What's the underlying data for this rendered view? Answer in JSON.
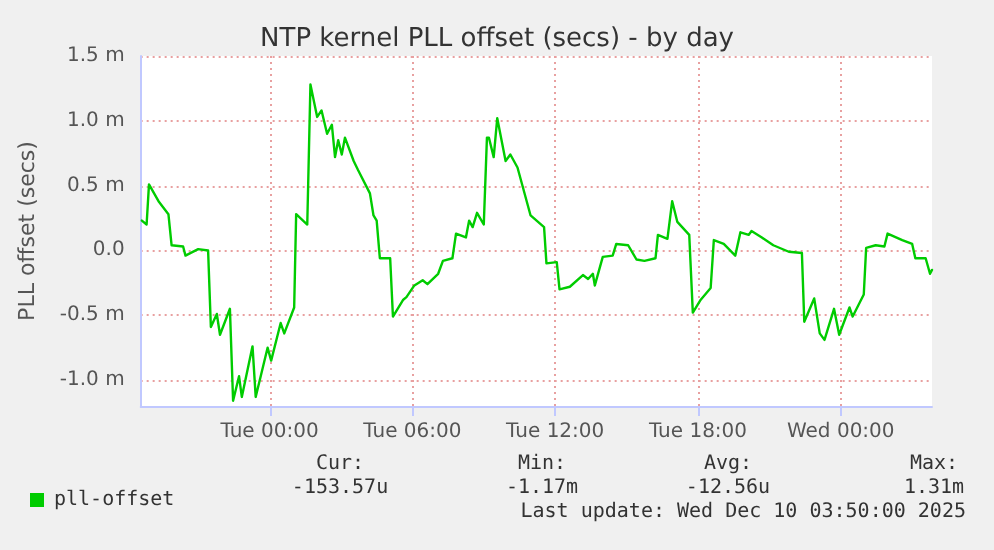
{
  "chart_data": {
    "type": "line",
    "title": "NTP kernel PLL offset (secs) - by day",
    "ylabel": "PLL offset (secs)",
    "series": [
      {
        "name": "pll-offset",
        "color": "#00cc00",
        "x": [
          "2025-12-08T18:38",
          "2025-12-08T18:50",
          "2025-12-08T18:56",
          "2025-12-08T19:20",
          "2025-12-08T19:45",
          "2025-12-08T19:53",
          "2025-12-08T20:22",
          "2025-12-08T20:28",
          "2025-12-08T21:00",
          "2025-12-08T21:25",
          "2025-12-08T21:32",
          "2025-12-08T21:47",
          "2025-12-08T21:55",
          "2025-12-08T22:20",
          "2025-12-08T22:28",
          "2025-12-08T22:43",
          "2025-12-08T22:50",
          "2025-12-08T23:17",
          "2025-12-08T23:25",
          "2025-12-08T23:55",
          "2025-12-09T00:04",
          "2025-12-09T00:28",
          "2025-12-09T00:37",
          "2025-12-09T01:02",
          "2025-12-09T01:07",
          "2025-12-09T01:35",
          "2025-12-09T01:43",
          "2025-12-09T02:00",
          "2025-12-09T02:11",
          "2025-12-09T02:25",
          "2025-12-09T02:37",
          "2025-12-09T02:45",
          "2025-12-09T02:53",
          "2025-12-09T03:02",
          "2025-12-09T03:10",
          "2025-12-09T03:32",
          "2025-12-09T03:43",
          "2025-12-09T04:13",
          "2025-12-09T04:22",
          "2025-12-09T04:30",
          "2025-12-09T04:38",
          "2025-12-09T05:04",
          "2025-12-09T05:11",
          "2025-12-09T05:37",
          "2025-12-09T05:45",
          "2025-12-09T06:05",
          "2025-12-09T06:26",
          "2025-12-09T06:38",
          "2025-12-09T07:05",
          "2025-12-09T07:17",
          "2025-12-09T07:41",
          "2025-12-09T07:50",
          "2025-12-09T08:15",
          "2025-12-09T08:23",
          "2025-12-09T08:32",
          "2025-12-09T08:43",
          "2025-12-09T09:00",
          "2025-12-09T09:08",
          "2025-12-09T09:13",
          "2025-12-09T09:25",
          "2025-12-09T09:34",
          "2025-12-09T09:55",
          "2025-12-09T10:07",
          "2025-12-09T10:25",
          "2025-12-09T10:58",
          "2025-12-09T11:32",
          "2025-12-09T11:38",
          "2025-12-09T12:04",
          "2025-12-09T12:11",
          "2025-12-09T12:37",
          "2025-12-09T13:10",
          "2025-12-09T13:23",
          "2025-12-09T13:35",
          "2025-12-09T13:40",
          "2025-12-09T14:00",
          "2025-12-09T14:25",
          "2025-12-09T14:34",
          "2025-12-09T15:04",
          "2025-12-09T15:25",
          "2025-12-09T15:45",
          "2025-12-09T16:13",
          "2025-12-09T16:19",
          "2025-12-09T16:43",
          "2025-12-09T16:55",
          "2025-12-09T17:08",
          "2025-12-09T17:38",
          "2025-12-09T17:47",
          "2025-12-09T18:07",
          "2025-12-09T18:32",
          "2025-12-09T18:40",
          "2025-12-09T19:05",
          "2025-12-09T19:34",
          "2025-12-09T19:47",
          "2025-12-09T20:08",
          "2025-12-09T20:15",
          "2025-12-09T20:41",
          "2025-12-09T21:10",
          "2025-12-09T21:49",
          "2025-12-09T22:22",
          "2025-12-09T22:28",
          "2025-12-09T22:53",
          "2025-12-09T23:07",
          "2025-12-09T23:19",
          "2025-12-09T23:43",
          "2025-12-09T23:56",
          "2025-12-10T00:22",
          "2025-12-10T00:30",
          "2025-12-10T00:58",
          "2025-12-10T01:04",
          "2025-12-10T01:28",
          "2025-12-10T01:50",
          "2025-12-10T01:58",
          "2025-12-10T02:35",
          "2025-12-10T03:00",
          "2025-12-10T03:08",
          "2025-12-10T03:34",
          "2025-12-10T03:45",
          "2025-12-10T03:50"
        ],
        "values": [
          0.23,
          0.2,
          0.51,
          0.38,
          0.28,
          0.04,
          0.03,
          -0.04,
          0.01,
          0.0,
          -0.59,
          -0.49,
          -0.65,
          -0.45,
          -1.16,
          -0.97,
          -1.13,
          -0.74,
          -1.13,
          -0.75,
          -0.85,
          -0.56,
          -0.64,
          -0.44,
          0.28,
          0.2,
          1.28,
          1.03,
          1.08,
          0.9,
          0.97,
          0.72,
          0.85,
          0.74,
          0.87,
          0.69,
          0.62,
          0.44,
          0.27,
          0.23,
          -0.06,
          -0.06,
          -0.51,
          -0.38,
          -0.36,
          -0.27,
          -0.23,
          -0.26,
          -0.18,
          -0.08,
          -0.06,
          0.13,
          0.1,
          0.23,
          0.18,
          0.29,
          0.2,
          0.87,
          0.87,
          0.72,
          1.02,
          0.69,
          0.74,
          0.64,
          0.27,
          0.18,
          -0.1,
          -0.09,
          -0.3,
          -0.28,
          -0.19,
          -0.22,
          -0.18,
          -0.27,
          -0.05,
          -0.04,
          0.05,
          0.04,
          -0.07,
          -0.08,
          -0.06,
          0.12,
          0.09,
          0.38,
          0.22,
          0.12,
          -0.48,
          -0.38,
          -0.29,
          0.08,
          0.05,
          -0.04,
          0.14,
          0.12,
          0.15,
          0.1,
          0.04,
          -0.01,
          -0.02,
          -0.55,
          -0.37,
          -0.64,
          -0.69,
          -0.45,
          -0.65,
          -0.44,
          -0.51,
          -0.34,
          0.02,
          0.04,
          0.03,
          0.13,
          0.08,
          0.05,
          -0.06,
          -0.06,
          -0.18,
          -0.15
        ]
      }
    ],
    "xlim": [
      "2025-12-08T18:35",
      "2025-12-10T03:50"
    ],
    "xticks": [
      {
        "value": "2025-12-09T00:00",
        "label": "Tue 00:00"
      },
      {
        "value": "2025-12-09T06:00",
        "label": "Tue 06:00"
      },
      {
        "value": "2025-12-09T12:00",
        "label": "Tue 12:00"
      },
      {
        "value": "2025-12-09T18:00",
        "label": "Tue 18:00"
      },
      {
        "value": "2025-12-10T00:00",
        "label": "Wed 00:00"
      }
    ],
    "ylim": [
      -1.2,
      1.5
    ],
    "yticks": [
      {
        "value": -1.0,
        "label": "-1.0 m"
      },
      {
        "value": -0.5,
        "label": "-0.5 m"
      },
      {
        "value": 0,
        "label": "0.0"
      },
      {
        "value": 0.5,
        "label": "0.5 m"
      },
      {
        "value": 1.0,
        "label": "1.0 m"
      },
      {
        "value": 1.5,
        "label": "1.5 m"
      }
    ],
    "grid": true,
    "legend": "bottom left",
    "marker": "none",
    "line_style": "solid",
    "annotations": [
      "Cur:",
      "-153.57u",
      "Min:",
      "-1.17m",
      "Avg:",
      "-12.56u",
      "Max:",
      "1.31m",
      "Last update: Wed Dec 10 03:50:00 2025"
    ]
  }
}
